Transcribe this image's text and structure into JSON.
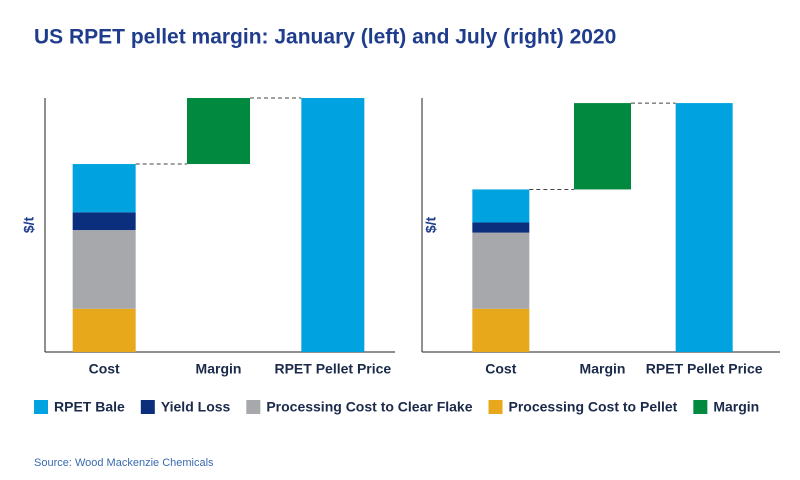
{
  "title": "US RPET pellet margin: January (left) and July (right) 2020",
  "source": "Source: Wood Mackenzie Chemicals",
  "legend": [
    {
      "name": "RPET Bale",
      "color": "#00a3e0"
    },
    {
      "name": "Yield Loss",
      "color": "#0b2f7c"
    },
    {
      "name": "Processing Cost to Clear Flake",
      "color": "#a7a8ac"
    },
    {
      "name": "Processing Cost to Pellet",
      "color": "#e8a81c"
    },
    {
      "name": "Margin",
      "color": "#00893f"
    }
  ],
  "chart_data": [
    {
      "type": "waterfall",
      "y_label": "$/t",
      "categories": [
        "Cost",
        "Margin",
        "RPET Pellet Price"
      ],
      "ylim": [
        0,
        100
      ],
      "series": [
        {
          "values": [
            19,
            null,
            100
          ]
        },
        {
          "values": [
            7,
            null,
            null
          ]
        },
        {
          "values": [
            31,
            null,
            null
          ]
        },
        {
          "values": [
            17,
            null,
            null
          ]
        },
        {
          "values": [
            null,
            26,
            null
          ]
        }
      ]
    },
    {
      "type": "waterfall",
      "y_label": "$/t",
      "categories": [
        "Cost",
        "Margin",
        "RPET Pellet Price"
      ],
      "ylim": [
        0,
        100
      ],
      "series": [
        {
          "values": [
            13,
            null,
            98
          ]
        },
        {
          "values": [
            4,
            null,
            null
          ]
        },
        {
          "values": [
            30,
            null,
            null
          ]
        },
        {
          "values": [
            17,
            null,
            null
          ]
        },
        {
          "values": [
            null,
            34,
            null
          ]
        }
      ]
    }
  ]
}
